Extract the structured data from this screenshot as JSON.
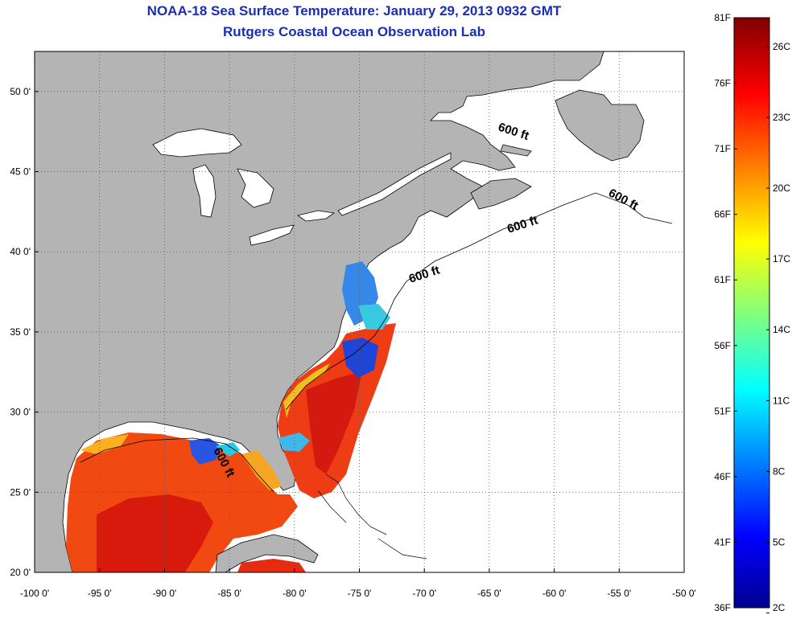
{
  "title": {
    "line1": "NOAA-18 Sea Surface Temperature:  January 29, 2013 0932 GMT",
    "line2": "Rutgers Coastal Ocean Observation Lab"
  },
  "map": {
    "lon_range": [
      -100,
      -50
    ],
    "lat_range": [
      20,
      52.5
    ],
    "x_ticks": [
      {
        "value": -100,
        "label": "-100 0'"
      },
      {
        "value": -95,
        "label": "-95 0'"
      },
      {
        "value": -90,
        "label": "-90 0'"
      },
      {
        "value": -85,
        "label": "-85 0'"
      },
      {
        "value": -80,
        "label": "-80 0'"
      },
      {
        "value": -75,
        "label": "-75 0'"
      },
      {
        "value": -70,
        "label": "-70 0'"
      },
      {
        "value": -65,
        "label": "-65 0'"
      },
      {
        "value": -60,
        "label": "-60 0'"
      },
      {
        "value": -55,
        "label": "-55 0'"
      },
      {
        "value": -50,
        "label": "-50 0'"
      }
    ],
    "y_ticks": [
      {
        "value": 20,
        "label": "20 0'"
      },
      {
        "value": 25,
        "label": "25 0'"
      },
      {
        "value": 30,
        "label": "30 0'"
      },
      {
        "value": 35,
        "label": "35 0'"
      },
      {
        "value": 40,
        "label": "40 0'"
      },
      {
        "value": 45,
        "label": "45 0'"
      },
      {
        "value": 50,
        "label": "50 0'"
      }
    ],
    "contour_labels": [
      "600 ft",
      "600 ft",
      "600 ft",
      "600 ft",
      "600 ft"
    ],
    "colors": {
      "land": "#b4b4b4",
      "ocean_nodata": "#ffffff",
      "grid": "#555555"
    }
  },
  "colorbar": {
    "temp_range_f": [
      36,
      81
    ],
    "fahrenheit_labels": [
      {
        "value": 81,
        "label": "81F"
      },
      {
        "value": 76,
        "label": "76F"
      },
      {
        "value": 71,
        "label": "71F"
      },
      {
        "value": 66,
        "label": "66F"
      },
      {
        "value": 61,
        "label": "61F"
      },
      {
        "value": 56,
        "label": "56F"
      },
      {
        "value": 51,
        "label": "51F"
      },
      {
        "value": 46,
        "label": "46F"
      },
      {
        "value": 41,
        "label": "41F"
      },
      {
        "value": 36,
        "label": "36F"
      }
    ],
    "celsius_labels": [
      {
        "value": 26,
        "label": "26C"
      },
      {
        "value": 23,
        "label": "23C"
      },
      {
        "value": 20,
        "label": "20C"
      },
      {
        "value": 17,
        "label": "17C"
      },
      {
        "value": 14,
        "label": "14C"
      },
      {
        "value": 11,
        "label": "11C"
      },
      {
        "value": 8,
        "label": "8C"
      },
      {
        "value": 5,
        "label": "5C"
      },
      {
        "value": 2,
        "label": "2C"
      }
    ],
    "stops": [
      "#00008f",
      "#0000ff",
      "#00ffff",
      "#ffff00",
      "#ff0000",
      "#800000"
    ]
  }
}
